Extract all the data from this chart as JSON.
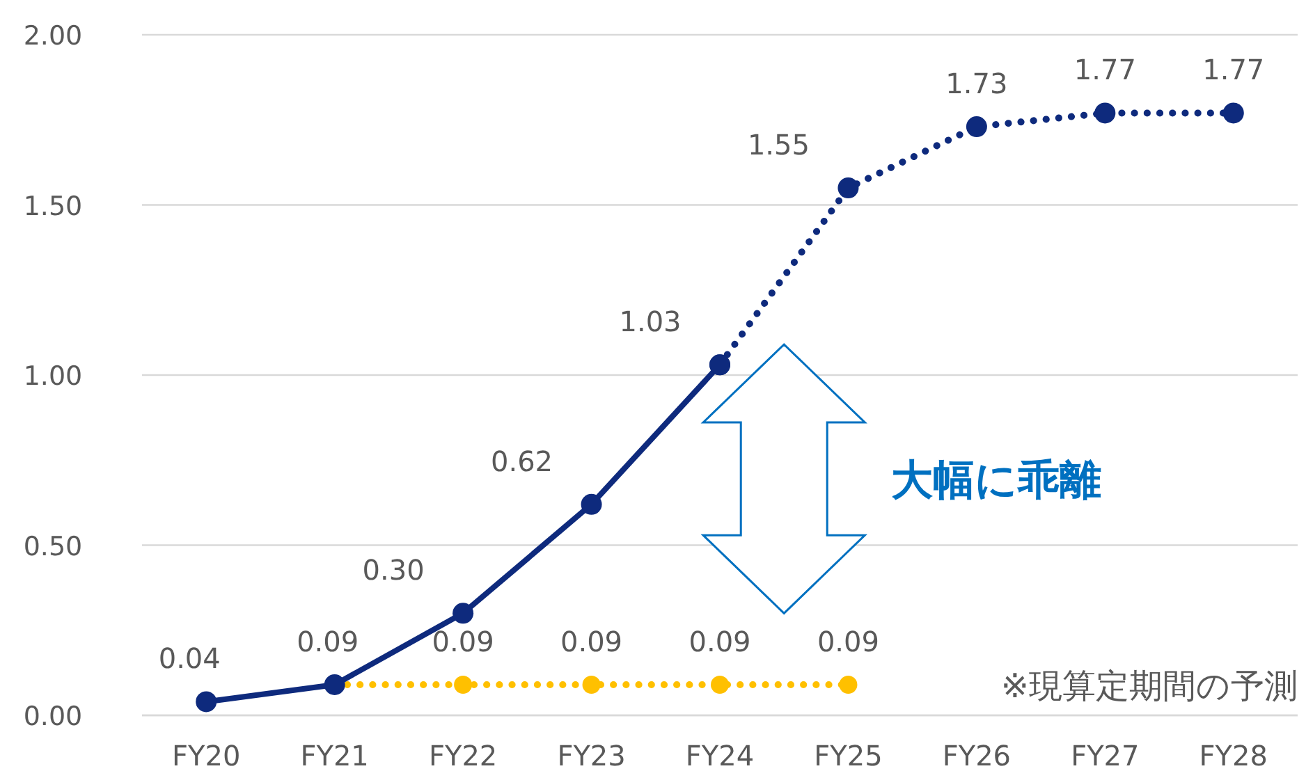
{
  "chart_data": {
    "type": "line",
    "categories": [
      "FY20",
      "FY21",
      "FY22",
      "FY23",
      "FY24",
      "FY25",
      "FY26",
      "FY27",
      "FY28"
    ],
    "series": [
      {
        "color": "#0e2a7d",
        "line_style": "solid",
        "values": [
          0.04,
          0.09,
          0.3,
          0.62,
          1.03,
          null,
          null,
          null,
          null
        ],
        "value_labels": [
          "0.04",
          "0.09",
          "0.30",
          "0.62",
          "1.03",
          null,
          null,
          null,
          null
        ]
      },
      {
        "color": "#0e2a7d",
        "line_style": "dotted",
        "values": [
          null,
          null,
          null,
          null,
          1.03,
          1.55,
          1.73,
          1.77,
          1.77
        ],
        "value_labels": [
          null,
          null,
          null,
          null,
          null,
          "1.55",
          "1.73",
          "1.77",
          "1.77"
        ]
      },
      {
        "color": "#ffc000",
        "line_style": "dotted",
        "values": [
          null,
          0.09,
          0.09,
          0.09,
          0.09,
          0.09,
          null,
          null,
          null
        ],
        "value_labels": [
          null,
          null,
          "0.09",
          "0.09",
          "0.09",
          "0.09",
          null,
          null,
          null
        ]
      }
    ],
    "ylim": [
      0,
      2
    ],
    "yticks": [
      {
        "value": 0,
        "label": "0.00"
      },
      {
        "value": 0.5,
        "label": "0.50"
      },
      {
        "value": 1,
        "label": "1.00"
      },
      {
        "value": 1.5,
        "label": "1.50"
      },
      {
        "value": 2,
        "label": "2.00"
      }
    ],
    "grid": "y",
    "marker": "circle",
    "annotations": [
      "大幅に乖離",
      "※現算定期間の予測"
    ]
  }
}
